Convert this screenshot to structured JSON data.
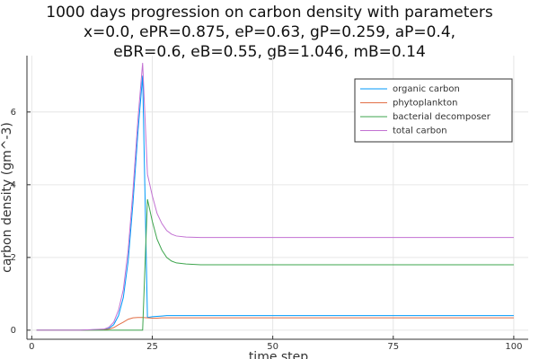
{
  "chart_data": {
    "type": "line",
    "title": [
      "1000 days progression on carbon density with parameters",
      "x=0.0, ePR=0.875, eP=0.63, gP=0.259, aP=0.4,",
      "eBR=0.6, eB=0.55, gB=1.046, mB=0.14"
    ],
    "x_label": "time step",
    "y_label": "carbon density (gm^-3)",
    "x": [
      1,
      5,
      10,
      15,
      16,
      17,
      18,
      19,
      20,
      21,
      22,
      23,
      24,
      25,
      26,
      27,
      28,
      29,
      30,
      32,
      35,
      40,
      50,
      60,
      70,
      80,
      90,
      100
    ],
    "series": [
      {
        "name": "organic carbon",
        "color": "#009af9",
        "values": [
          0,
          0,
          0,
          0.02,
          0.05,
          0.15,
          0.4,
          0.9,
          1.9,
          3.5,
          5.4,
          7.0,
          0.35,
          0.37,
          0.38,
          0.39,
          0.4,
          0.4,
          0.4,
          0.4,
          0.4,
          0.4,
          0.4,
          0.4,
          0.4,
          0.4,
          0.4,
          0.4
        ]
      },
      {
        "name": "phytoplankton",
        "color": "#e26f46",
        "values": [
          0,
          0,
          0,
          0.01,
          0.03,
          0.07,
          0.15,
          0.22,
          0.3,
          0.34,
          0.35,
          0.35,
          0.34,
          0.33,
          0.33,
          0.34,
          0.34,
          0.34,
          0.34,
          0.34,
          0.34,
          0.34,
          0.34,
          0.34,
          0.34,
          0.34,
          0.34,
          0.34
        ]
      },
      {
        "name": "bacterial decomposer",
        "color": "#3da44d",
        "values": [
          0,
          0,
          0,
          0,
          0,
          0,
          0,
          0,
          0,
          0,
          0,
          0,
          3.6,
          3.0,
          2.5,
          2.2,
          2.0,
          1.9,
          1.85,
          1.82,
          1.8,
          1.8,
          1.8,
          1.8,
          1.8,
          1.8,
          1.8,
          1.8
        ]
      },
      {
        "name": "total carbon",
        "color": "#c271d2",
        "values": [
          0,
          0,
          0,
          0.03,
          0.08,
          0.22,
          0.55,
          1.12,
          2.2,
          3.84,
          5.75,
          7.35,
          4.29,
          3.7,
          3.21,
          2.93,
          2.74,
          2.64,
          2.59,
          2.56,
          2.55,
          2.55,
          2.55,
          2.55,
          2.55,
          2.55,
          2.55,
          2.55
        ]
      }
    ],
    "xlim": [
      -1,
      103
    ],
    "ylim": [
      -0.25,
      7.55
    ],
    "xticks": [
      0,
      25,
      50,
      75,
      100
    ],
    "yticks": [
      0,
      2,
      4,
      6
    ],
    "grid": true,
    "legend": "top-right"
  }
}
